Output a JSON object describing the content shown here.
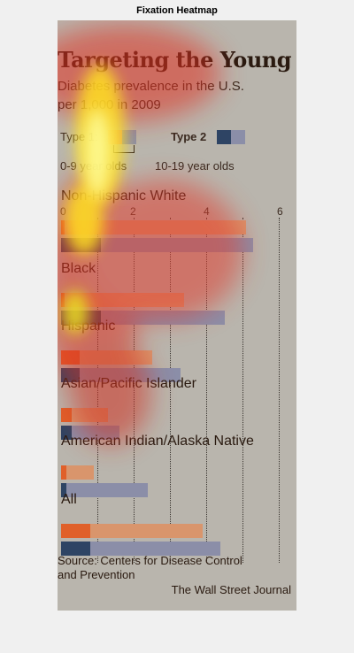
{
  "figure_title": "Fixation Heatmap",
  "graphic": {
    "headline": "Targeting the Young",
    "subtitle_lines": [
      "Diabetes prevalence in the U.S.",
      "per 1,000 in 2009"
    ],
    "legend": {
      "type1_label": "Type 1:",
      "type2_label": "Type 2",
      "age_young": "0-9 year olds",
      "age_old": "10-19 year olds"
    },
    "axis_ticks": [
      "0",
      "2",
      "4",
      "6"
    ],
    "source_lines": [
      "Source: Centers for Disease Control",
      "and Prevention"
    ],
    "credit": "The Wall Street Journal"
  },
  "colors": {
    "young_bar": "#d9956c",
    "old_bar": "#8b8ea8",
    "type2_dark": "#2e4464",
    "type2_orange": "#e0602a"
  },
  "chart_data": {
    "type": "bar",
    "xlim": [
      0,
      6
    ],
    "categories": [
      "Non-Hispanic White",
      "Black",
      "Hispanic",
      "Asian/Pacific Islander",
      "American Indian/Alaska Native",
      "All"
    ],
    "series": [
      {
        "name": "0-9 year olds",
        "values": [
          5.1,
          3.4,
          2.5,
          1.3,
          0.9,
          3.9
        ]
      },
      {
        "name": "10-19 year olds",
        "values": [
          5.3,
          4.5,
          3.3,
          1.6,
          2.4,
          4.4
        ]
      }
    ],
    "type2_values": [
      {
        "values": [
          0.1,
          0.1,
          0.5,
          0.3,
          0.15,
          0.8
        ]
      },
      {
        "values": [
          1.1,
          1.1,
          0.5,
          0.3,
          0.15,
          0.8
        ]
      }
    ]
  }
}
